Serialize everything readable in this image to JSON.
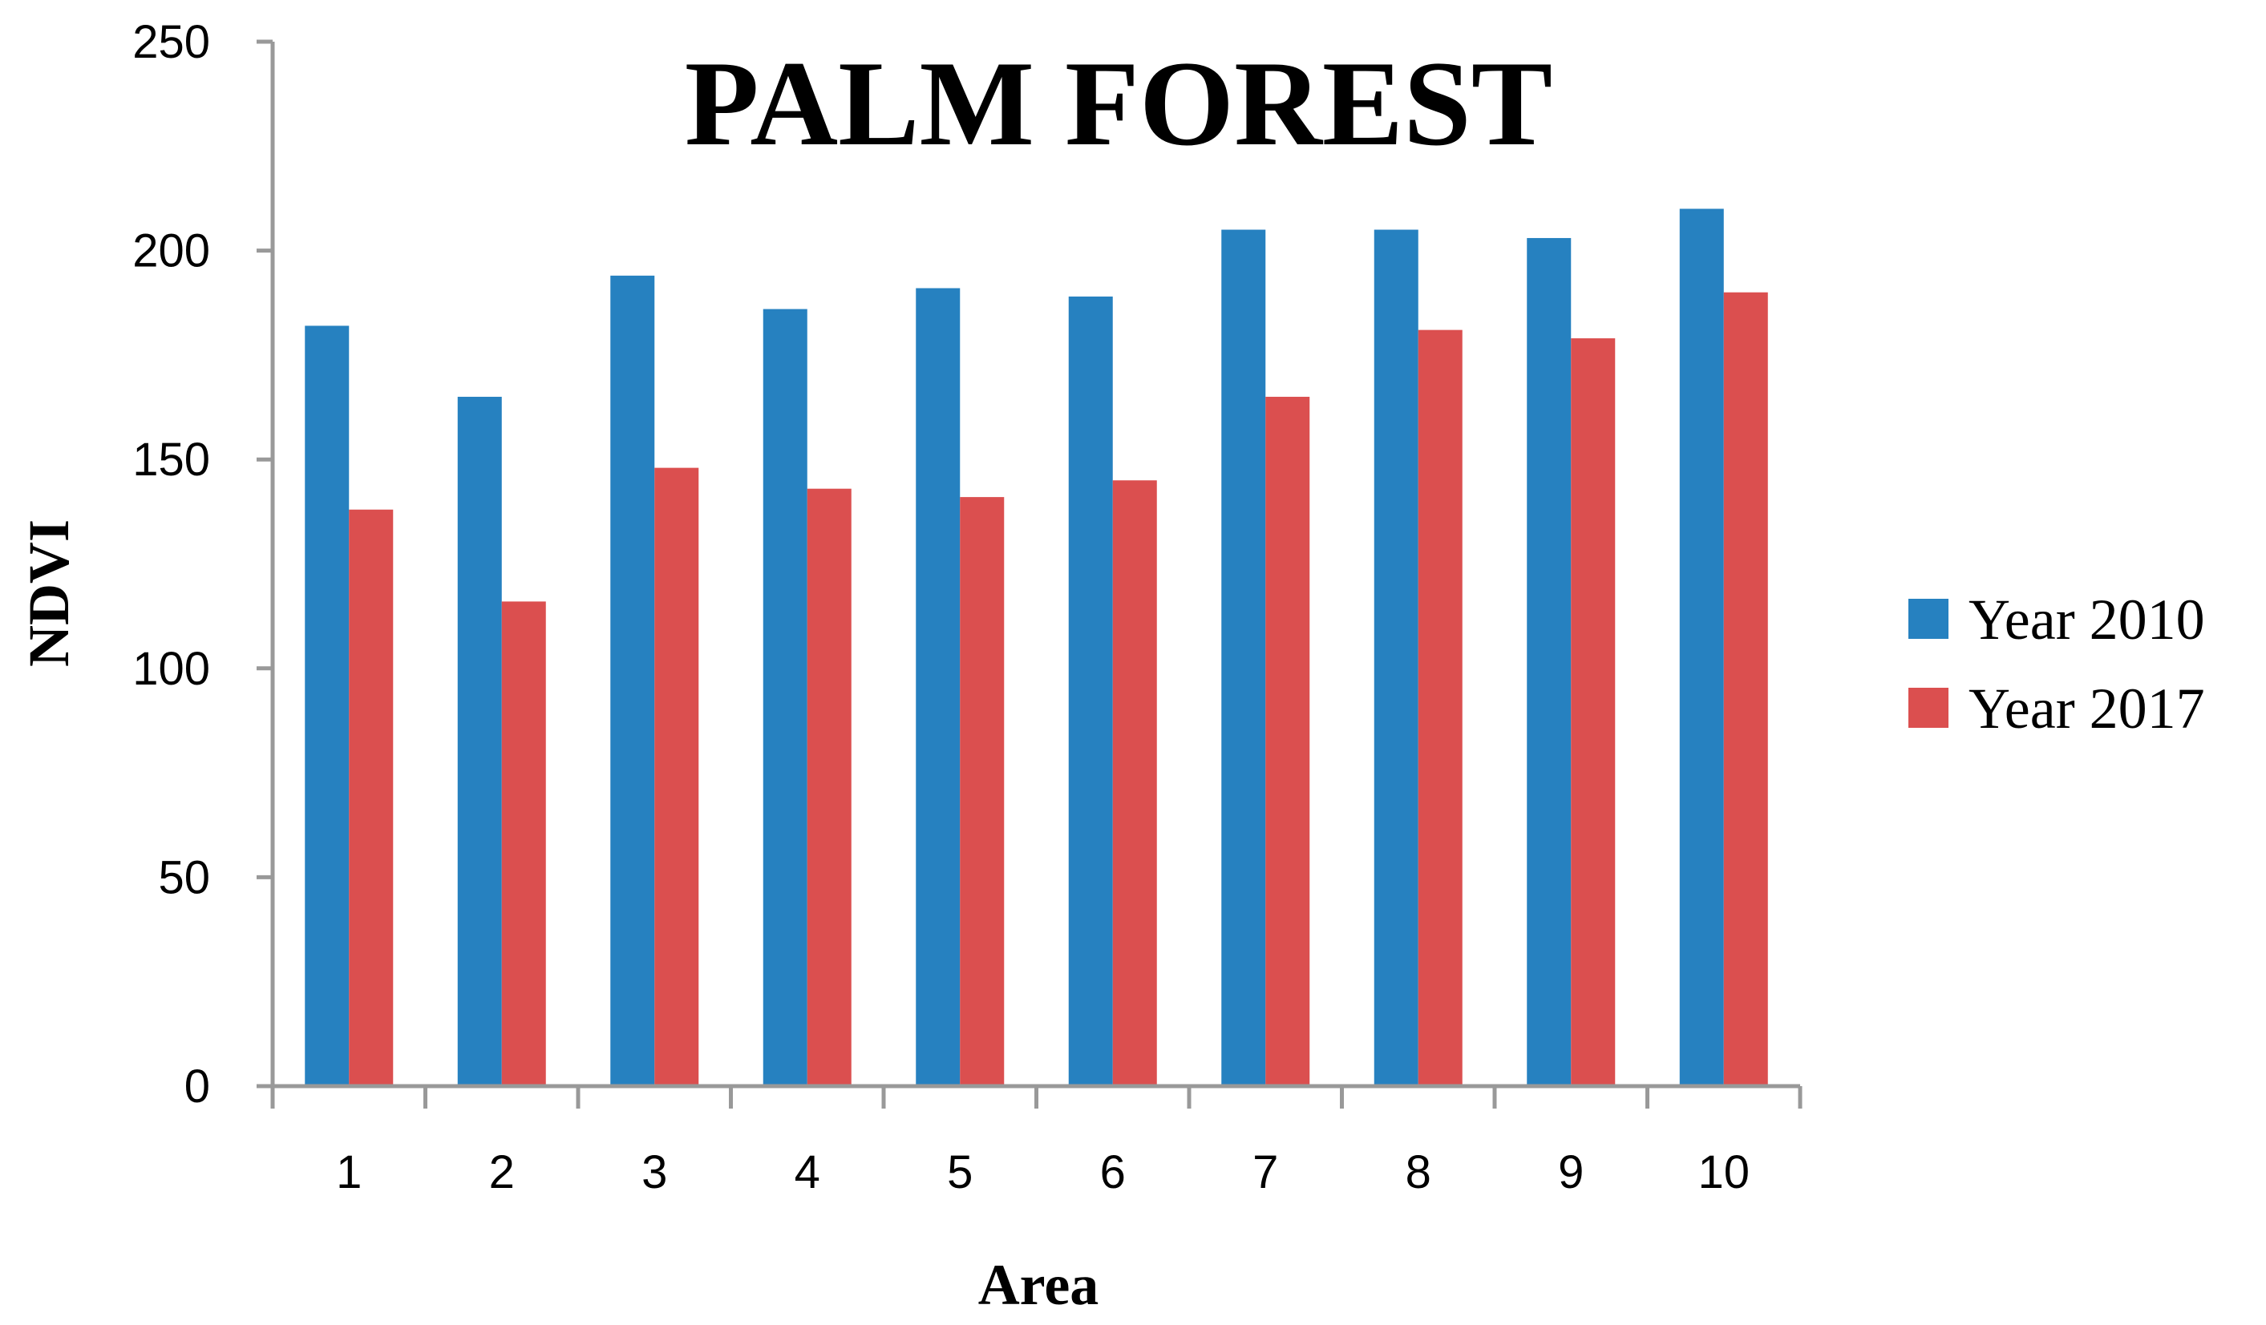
{
  "chart_data": {
    "type": "bar",
    "title": "PALM FOREST",
    "xlabel": "Area",
    "ylabel": "NDVI",
    "categories": [
      "1",
      "2",
      "3",
      "4",
      "5",
      "6",
      "7",
      "8",
      "9",
      "10"
    ],
    "series": [
      {
        "name": "Year 2010",
        "color": "#2681C0",
        "values": [
          182,
          165,
          194,
          186,
          191,
          189,
          205,
          205,
          203,
          210
        ]
      },
      {
        "name": "Year 2017",
        "color": "#DB4F4F",
        "values": [
          138,
          116,
          148,
          143,
          141,
          145,
          165,
          181,
          179,
          190
        ]
      }
    ],
    "ylim": [
      0,
      250
    ],
    "yticks": [
      "0",
      "50",
      "100",
      "150",
      "200",
      "250"
    ],
    "grid": false,
    "legend": "right",
    "axis_color": "#999999"
  }
}
